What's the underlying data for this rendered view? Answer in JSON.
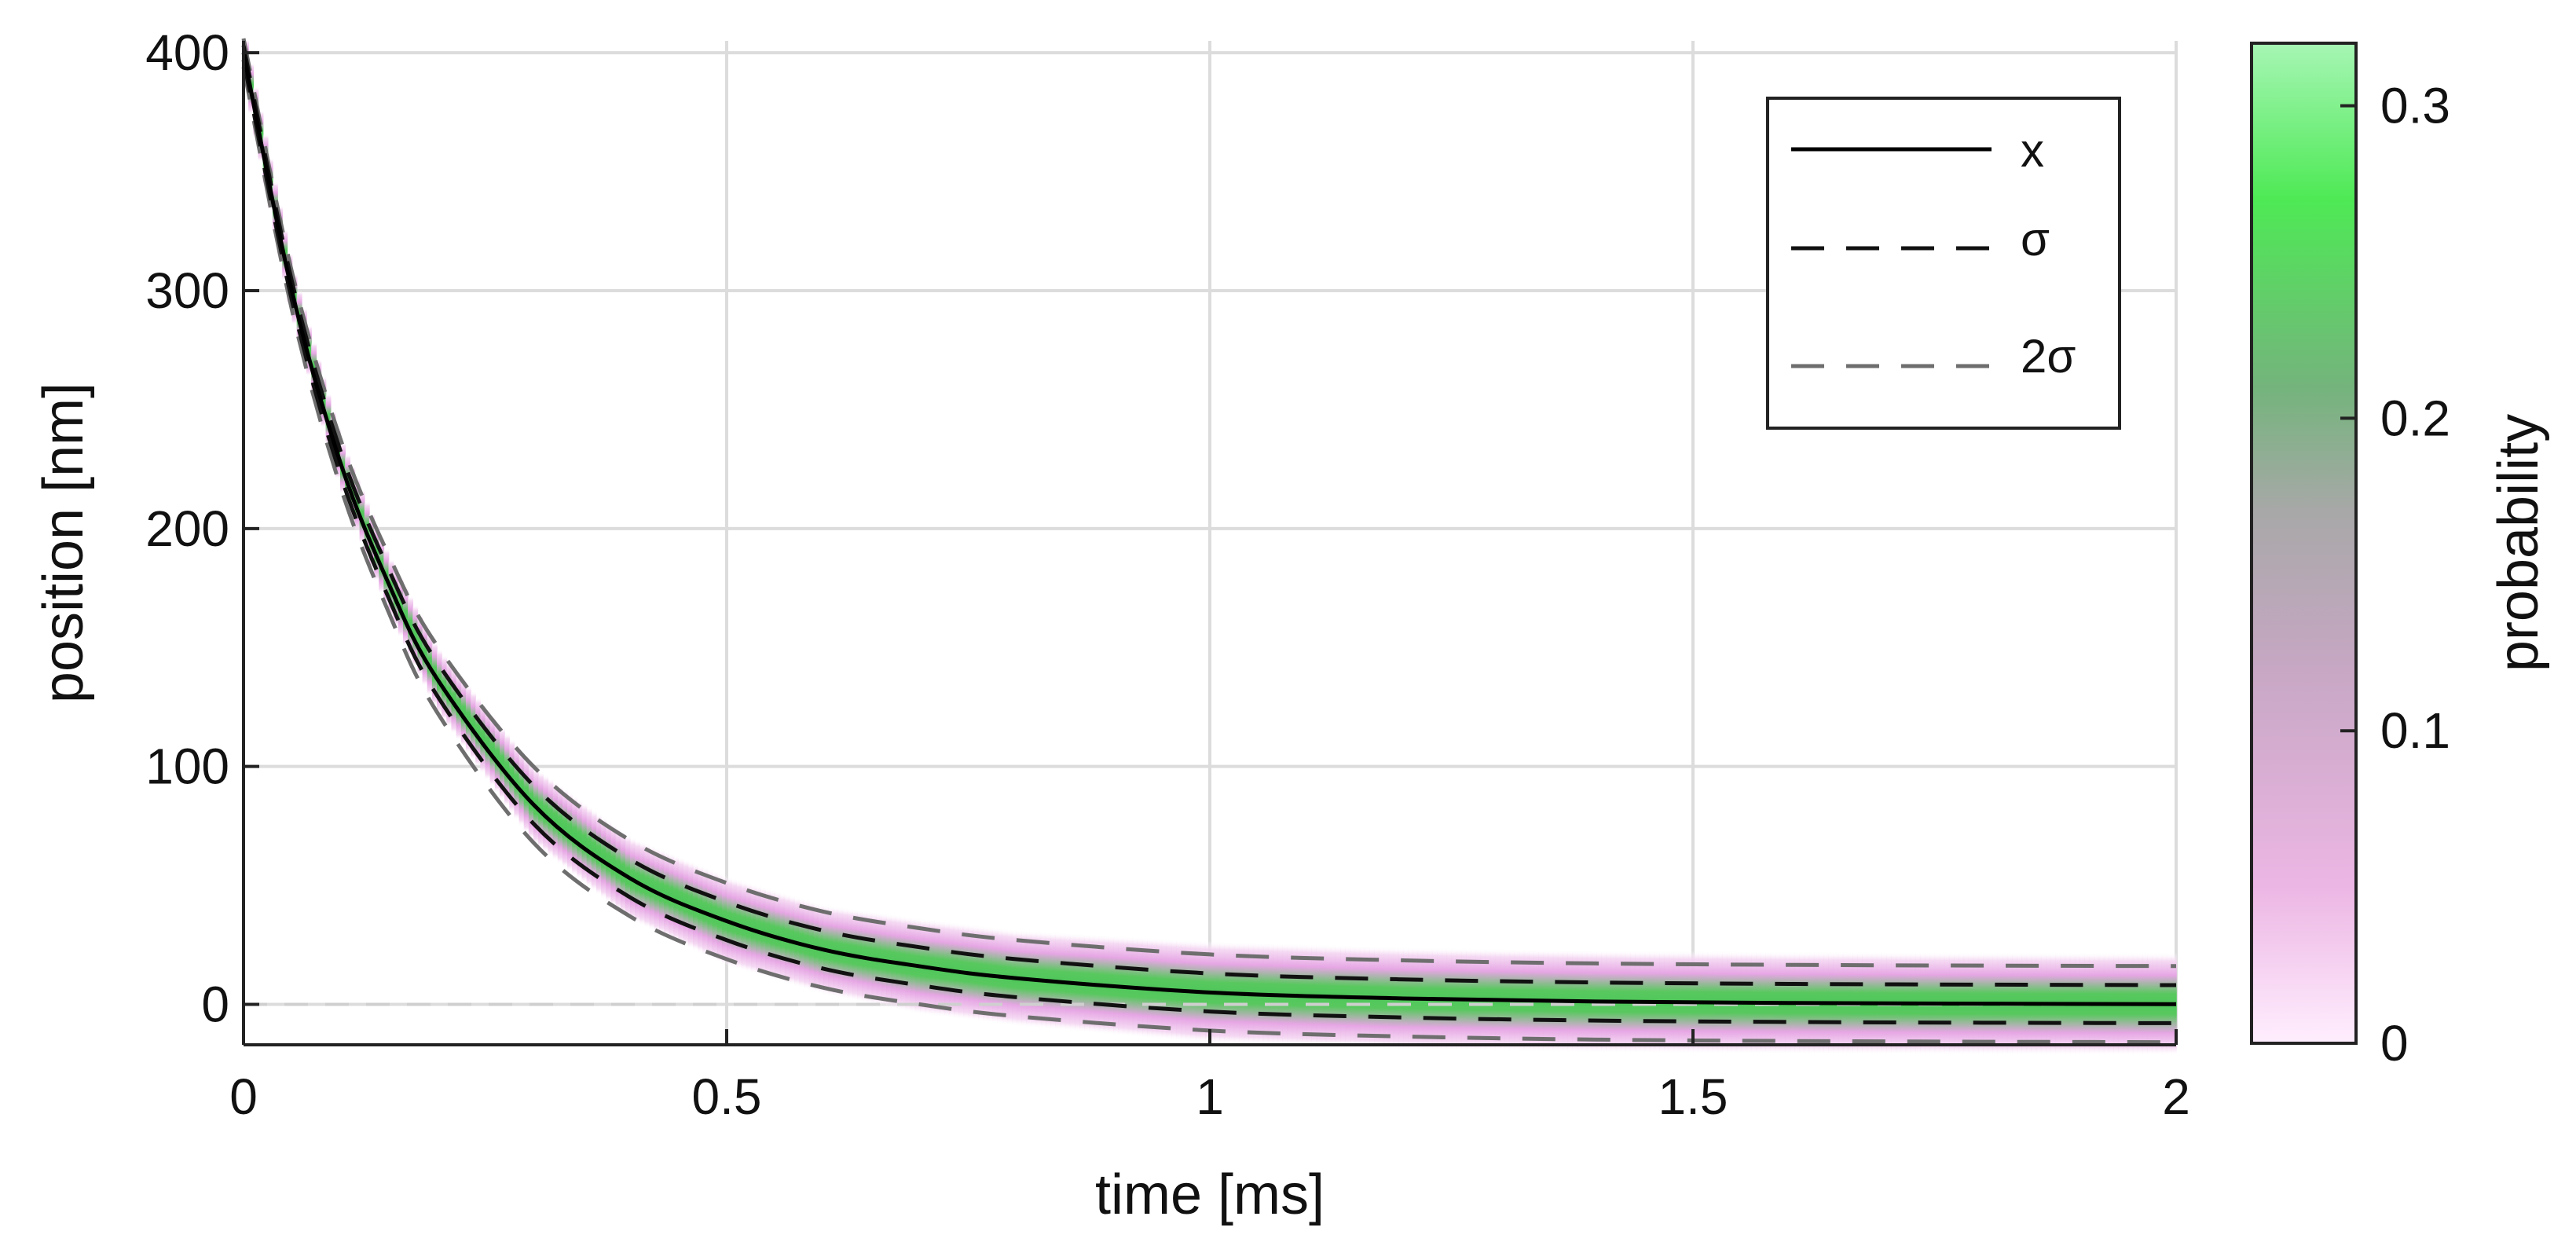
{
  "chart_data": {
    "type": "line",
    "xlabel": "time [ms]",
    "ylabel": "position [nm]",
    "xlim": [
      0,
      2
    ],
    "ylim": [
      -17,
      405
    ],
    "xticks": [
      0,
      0.5,
      1,
      1.5,
      2
    ],
    "xtick_labels": [
      "0",
      "0.5",
      "1",
      "1.5",
      "2"
    ],
    "yticks": [
      0,
      100,
      200,
      300,
      400
    ],
    "ytick_labels": [
      "0",
      "100",
      "200",
      "300",
      "400"
    ],
    "grid": true,
    "legend_placement": "top-right",
    "zero_reference_line": 0,
    "x": [
      0,
      0.05,
      0.1,
      0.15,
      0.2,
      0.3,
      0.4,
      0.5,
      0.6,
      0.7,
      0.8,
      1.0,
      1.2,
      1.4,
      1.6,
      1.8,
      2.0
    ],
    "series": [
      {
        "name": "x",
        "style": "solid",
        "color": "#000000",
        "values": [
          400,
          300,
          228,
          177,
          137,
          84,
          53,
          35,
          23,
          16,
          11,
          5,
          2.5,
          1.2,
          0.6,
          0.3,
          0.1
        ]
      },
      {
        "name": "σ",
        "style": "dashed",
        "color": "#111111",
        "upper": [
          403,
          304,
          233,
          183,
          144,
          92,
          61,
          43,
          31,
          24,
          19,
          13,
          10.5,
          9.2,
          8.6,
          8.3,
          8.1
        ],
        "lower": [
          397,
          296,
          223,
          171,
          130,
          76,
          45,
          27,
          15,
          8,
          3,
          -3,
          -5.5,
          -6.8,
          -7.4,
          -7.7,
          -7.9
        ]
      },
      {
        "name": "2σ",
        "style": "dashed",
        "color": "#6e6e6e",
        "upper": [
          406,
          308,
          238,
          189,
          151,
          100,
          69,
          51,
          39,
          32,
          27,
          21,
          18.5,
          17.2,
          16.6,
          16.3,
          16.1
        ],
        "lower": [
          394,
          292,
          218,
          165,
          123,
          68,
          37,
          19,
          7,
          0,
          -5,
          -11,
          -13.5,
          -14.8,
          -15.4,
          -15.7,
          -15.9
        ]
      }
    ],
    "density_band_halfwidth_nm": [
      8,
      8,
      8,
      9,
      10,
      12,
      13,
      14,
      14,
      15,
      15,
      16,
      16,
      16,
      16,
      16,
      16
    ],
    "colorbar": {
      "label": "probability",
      "range": [
        0,
        0.32
      ],
      "ticks": [
        0,
        0.1,
        0.2,
        0.3
      ],
      "tick_labels": [
        "0",
        "0.1",
        "0.2",
        "0.3"
      ],
      "stops": [
        {
          "value": 0.0,
          "color": "#ffeefe"
        },
        {
          "value": 0.05,
          "color": "#ecb6e4"
        },
        {
          "value": 0.12,
          "color": "#c7a7c4"
        },
        {
          "value": 0.17,
          "color": "#a8a8a8"
        },
        {
          "value": 0.21,
          "color": "#74b47c"
        },
        {
          "value": 0.27,
          "color": "#4ee955"
        },
        {
          "value": 0.32,
          "color": "#a6f6b4"
        }
      ]
    }
  }
}
